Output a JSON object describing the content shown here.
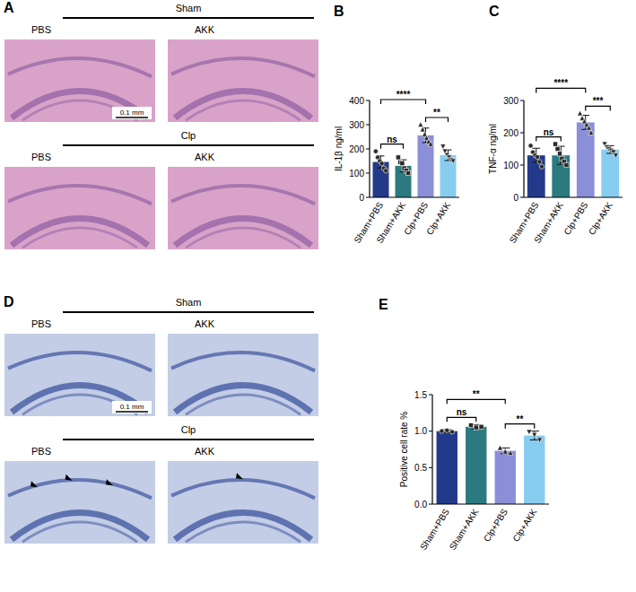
{
  "histology": [
    {
      "panel": "A",
      "color": "#d9a3c9",
      "groups": [
        {
          "title": "Sham",
          "columns": [
            "PBS",
            "AKK"
          ]
        },
        {
          "title": "Clp",
          "columns": [
            "PBS",
            "AKK"
          ]
        }
      ],
      "scale_bar": "0.1 mm"
    },
    {
      "panel": "D",
      "color": "#c3cde6",
      "groups": [
        {
          "title": "Sham",
          "columns": [
            "PBS",
            "AKK"
          ]
        },
        {
          "title": "Clp",
          "columns": [
            "PBS",
            "AKK"
          ]
        }
      ],
      "scale_bar": "0.1 mm"
    }
  ],
  "chart_data": [
    {
      "type": "bar",
      "panel": "B",
      "y_label": "IL-1β  ng/ml",
      "categories": [
        "Sham+PBS",
        "Sham+AKK",
        "Clp+PBS",
        "Clp+AKK"
      ],
      "values": [
        146,
        130,
        256,
        174
      ],
      "error": [
        25,
        25,
        30,
        22
      ],
      "points": [
        [
          190,
          165,
          150,
          140,
          120,
          110
        ],
        [
          165,
          145,
          140,
          120,
          110,
          100
        ],
        [
          300,
          280,
          260,
          245,
          230,
          220
        ],
        [
          210,
          190,
          175,
          165,
          155,
          150
        ]
      ],
      "colors": [
        "#233a8b",
        "#2a7a80",
        "#8b8fd8",
        "#87cdf0"
      ],
      "ylim": [
        0,
        400
      ],
      "yticks": [
        0,
        100,
        200,
        300,
        400
      ],
      "annotations": [
        {
          "pair": [
            "Sham+PBS",
            "Sham+AKK"
          ],
          "text": "ns"
        },
        {
          "pair": [
            "Sham+PBS",
            "Clp+PBS"
          ],
          "text": "****"
        },
        {
          "pair": [
            "Clp+PBS",
            "Clp+AKK"
          ],
          "text": "**"
        }
      ]
    },
    {
      "type": "bar",
      "panel": "C",
      "y_label": "TNF-α  ng/ml",
      "categories": [
        "Sham+PBS",
        "Sham+AKK",
        "Clp+PBS",
        "Clp+AKK"
      ],
      "values": [
        130,
        130,
        232,
        148
      ],
      "error": [
        22,
        28,
        22,
        12
      ],
      "points": [
        [
          160,
          140,
          130,
          125,
          110,
          95
        ],
        [
          165,
          150,
          135,
          120,
          110,
          100
        ],
        [
          260,
          245,
          235,
          225,
          215,
          200
        ],
        [
          165,
          155,
          150,
          145,
          140,
          130
        ]
      ],
      "colors": [
        "#233a8b",
        "#2a7a80",
        "#8b8fd8",
        "#87cdf0"
      ],
      "ylim": [
        0,
        300
      ],
      "yticks": [
        0,
        100,
        200,
        300
      ],
      "annotations": [
        {
          "pair": [
            "Sham+PBS",
            "Sham+AKK"
          ],
          "text": "ns"
        },
        {
          "pair": [
            "Sham+PBS",
            "Clp+PBS"
          ],
          "text": "****"
        },
        {
          "pair": [
            "Clp+PBS",
            "Clp+AKK"
          ],
          "text": "***"
        }
      ]
    },
    {
      "type": "bar",
      "panel": "E",
      "y_label": "Positive cell rate %",
      "categories": [
        "Sham+PBS",
        "Sham+AKK",
        "Clp+PBS",
        "Clp+AKK"
      ],
      "values": [
        1.0,
        1.06,
        0.73,
        0.94
      ],
      "error": [
        0.02,
        0.03,
        0.04,
        0.06
      ],
      "points": [
        [
          1.0,
          1.01,
          0.99
        ],
        [
          1.08,
          1.05,
          1.06
        ],
        [
          0.77,
          0.72,
          0.7
        ],
        [
          0.99,
          0.95,
          0.88
        ]
      ],
      "colors": [
        "#233a8b",
        "#2a7a80",
        "#8b8fd8",
        "#87cdf0"
      ],
      "ylim": [
        0,
        1.5
      ],
      "yticks": [
        {
          "value": 0,
          "label": "0.0"
        },
        {
          "value": 0.5,
          "label": "0.5"
        },
        {
          "value": 1,
          "label": "1.0"
        },
        {
          "value": 1.5,
          "label": "1.5"
        }
      ],
      "annotations": [
        {
          "pair": [
            "Sham+PBS",
            "Sham+AKK"
          ],
          "text": "ns"
        },
        {
          "pair": [
            "Sham+PBS",
            "Clp+PBS"
          ],
          "text": "**"
        },
        {
          "pair": [
            "Clp+PBS",
            "Clp+AKK"
          ],
          "text": "**"
        }
      ]
    }
  ]
}
